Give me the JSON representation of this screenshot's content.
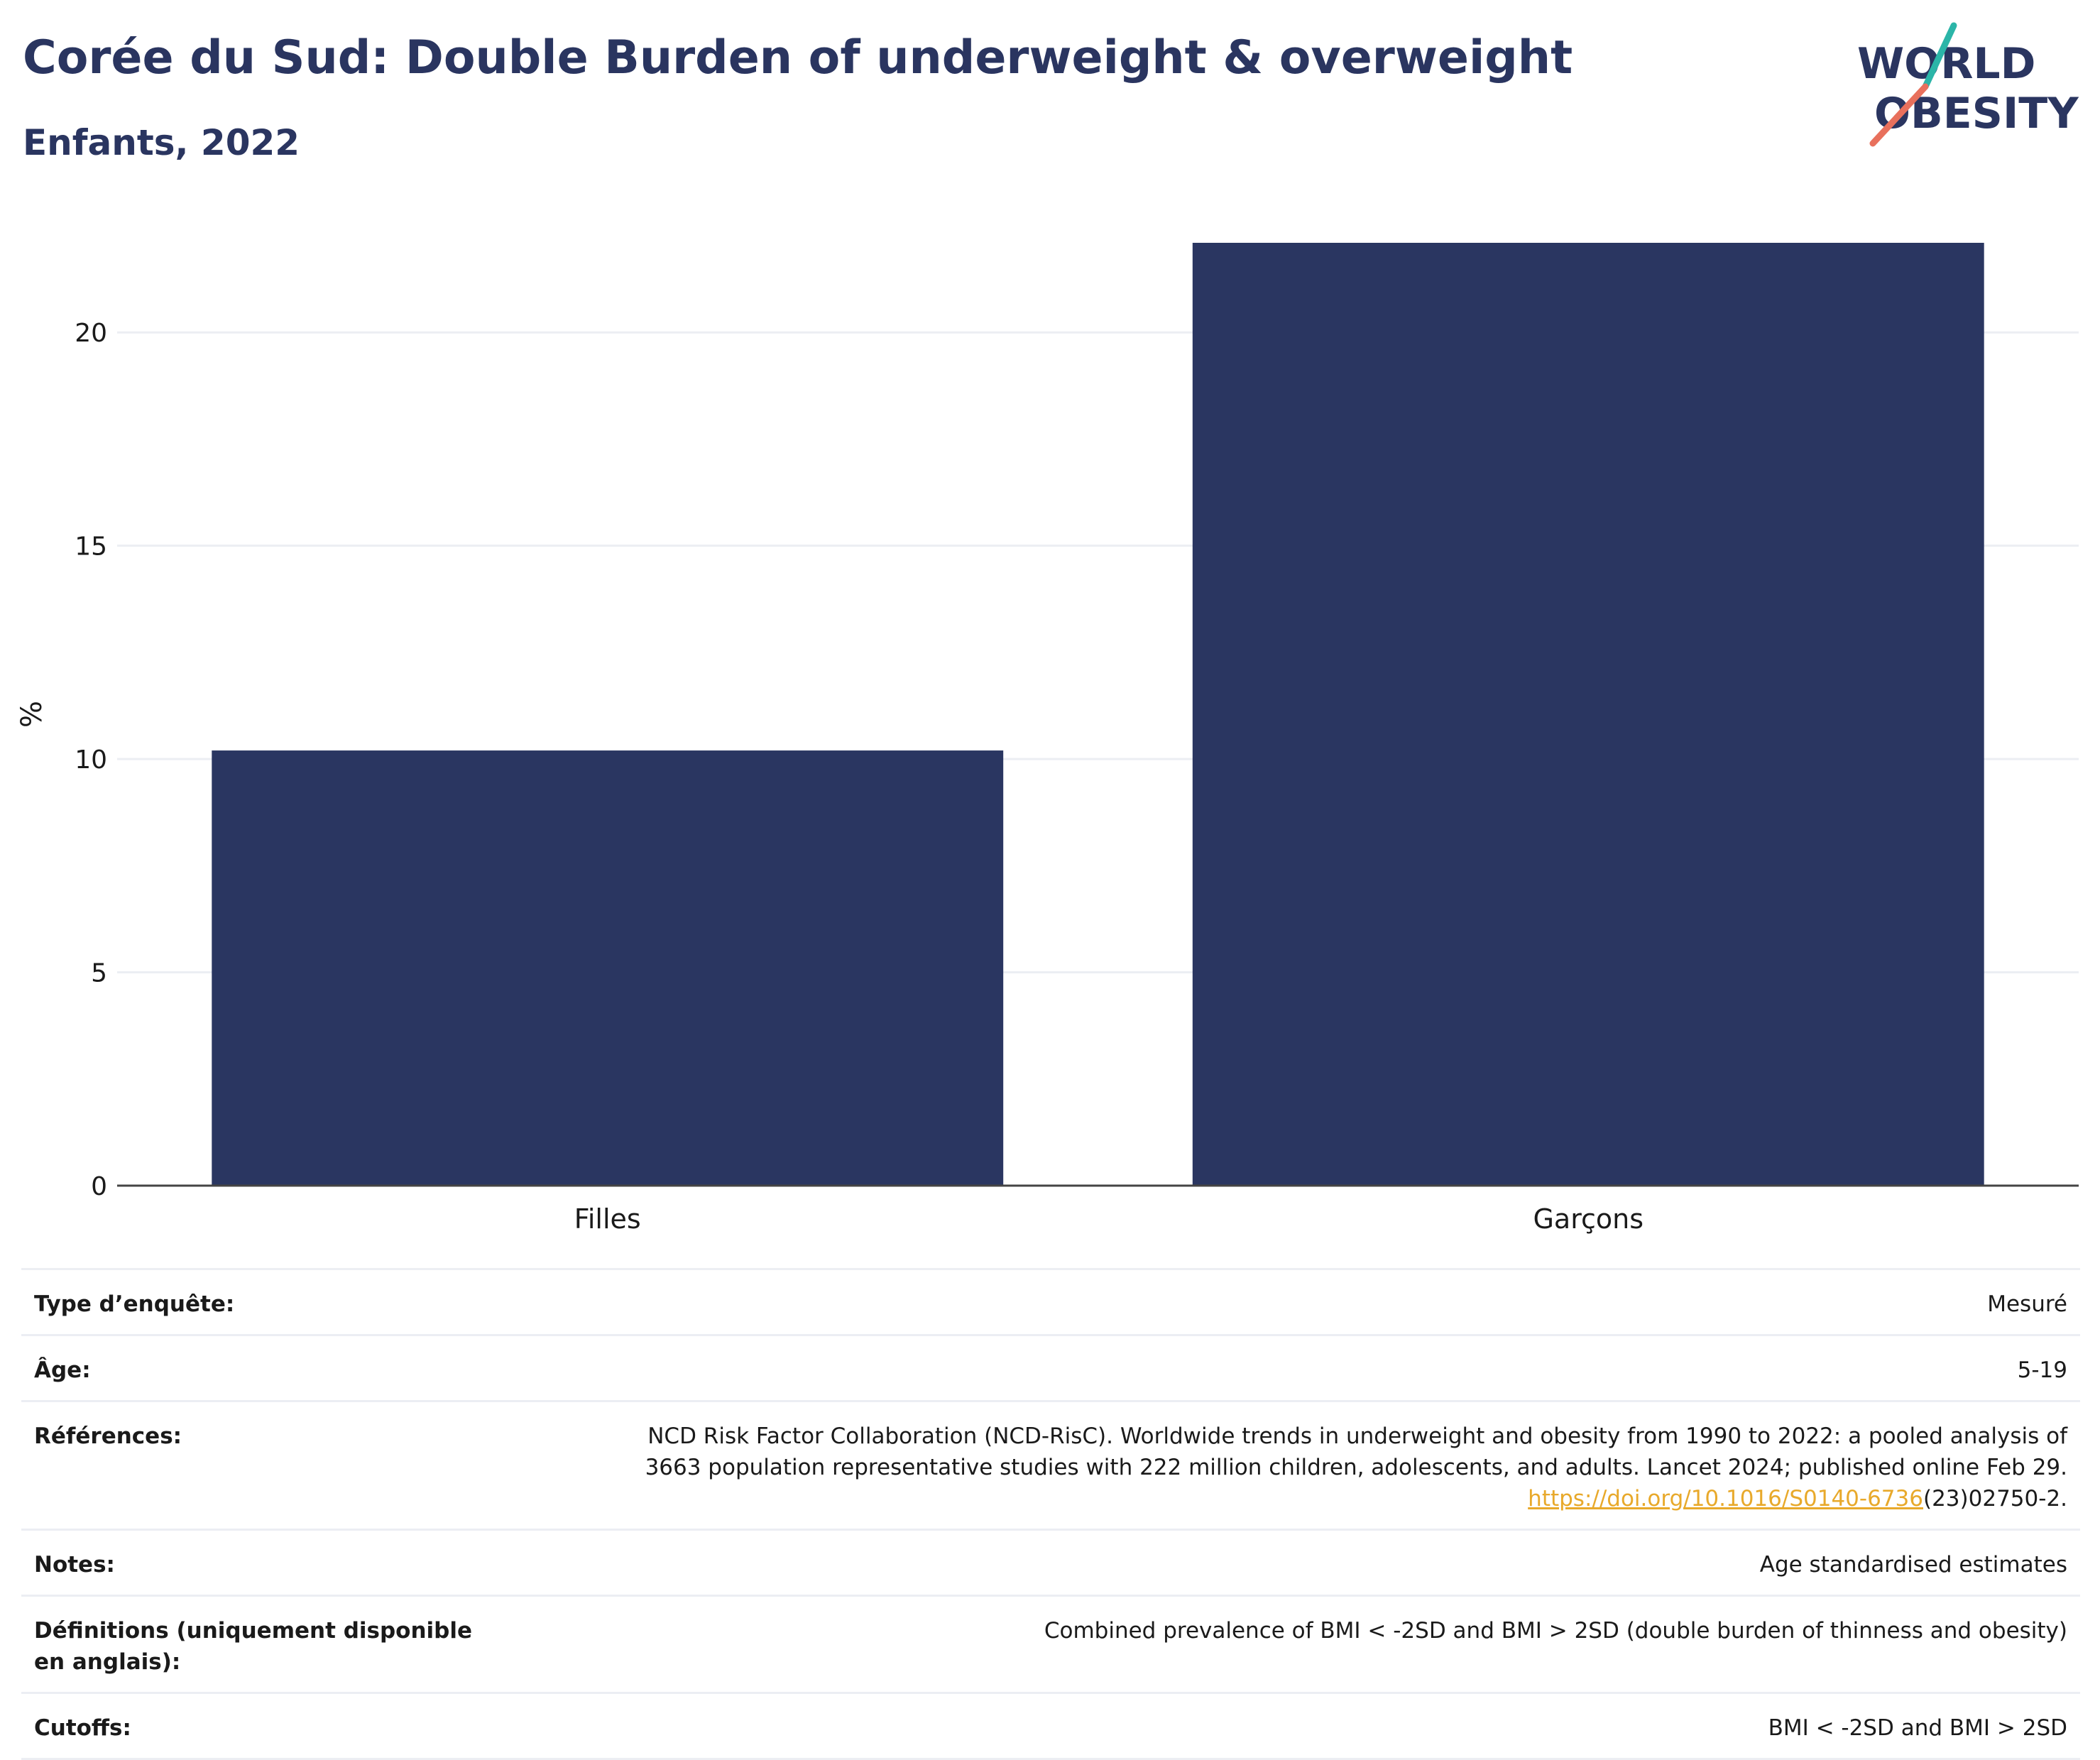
{
  "header": {
    "title": "Corée du Sud: Double Burden of underweight & overweight",
    "subtitle": "Enfants, 2022"
  },
  "logo": {
    "line1": "WORLD",
    "line2": "OBESITY",
    "colors": {
      "text": "#2a3560",
      "slash_top": "#2bb5a8",
      "slash_bottom": "#e8705c"
    }
  },
  "chart_data": {
    "type": "bar",
    "categories": [
      "Filles",
      "Garçons"
    ],
    "values": [
      10.2,
      22.1
    ],
    "ylabel": "%",
    "ylim": [
      0,
      22.1
    ],
    "yticks": [
      0,
      5,
      10,
      15,
      20
    ],
    "grid": true,
    "legend": "none",
    "bar_color": "#2a3661"
  },
  "meta": {
    "rows": [
      {
        "key": "Type d’enquête:",
        "value": "Mesuré"
      },
      {
        "key": "Âge:",
        "value": "5-19"
      },
      {
        "key": "Références:",
        "value_lines": [
          "NCD Risk Factor Collaboration (NCD-RisC). Worldwide trends in underweight and obesity from 1990 to 2022: a pooled analysis of",
          "3663 population representative studies with 222 million children, adolescents, and adults. Lancet 2024; published online Feb 29."
        ],
        "link": "https://doi.org/10.1016/S0140-6736",
        "link_suffix": "(23)02750-2."
      },
      {
        "key": "Notes:",
        "value": "Age standardised estimates"
      },
      {
        "key": "Définitions (uniquement disponible en anglais):",
        "value": "Combined prevalence of BMI < -2SD and BMI > 2SD (double burden of thinness and obesity)"
      },
      {
        "key": "Cutoffs:",
        "value": "BMI < -2SD and BMI > 2SD"
      }
    ]
  }
}
